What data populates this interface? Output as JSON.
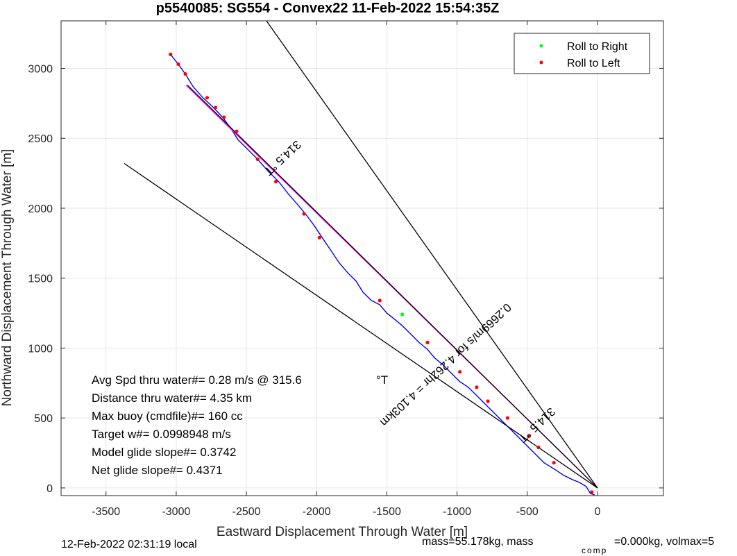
{
  "chart_data": {
    "type": "line",
    "title": "p5540085: SG554 - Convex22 11-Feb-2022 15:54:35Z",
    "xlabel": "Eastward Displacement Through Water [m]",
    "ylabel": "Northward Displacement Through Water [m]",
    "xlim": [
      -3820,
      470
    ],
    "ylim": [
      -55,
      3340
    ],
    "xticks": [
      -3500,
      -3000,
      -2500,
      -2000,
      -1500,
      -1000,
      -500,
      0
    ],
    "yticks": [
      0,
      500,
      1000,
      1500,
      2000,
      2500,
      3000
    ],
    "grid": true,
    "legend_position": "top-right",
    "legend": [
      "Roll to Right",
      "Roll to Left"
    ],
    "series": [
      {
        "name": "track",
        "color": "#0000ff",
        "style": "line",
        "x": [
          -3040,
          -2985,
          -2935,
          -2880,
          -2810,
          -2735,
          -2670,
          -2610,
          -2560,
          -2490,
          -2420,
          -2350,
          -2270,
          -2200,
          -2130,
          -2080,
          -2020,
          -1960,
          -1900,
          -1840,
          -1780,
          -1720,
          -1670,
          -1610,
          -1550,
          -1500,
          -1450,
          -1390,
          -1330,
          -1270,
          -1210,
          -1160,
          -1100,
          -1040,
          -980,
          -920,
          -860,
          -800,
          -740,
          -680,
          -620,
          -560,
          -500,
          -440,
          -380,
          -300,
          -240,
          -180,
          -130,
          -80,
          -50,
          -20
        ],
        "y": [
          3100,
          3030,
          2960,
          2870,
          2790,
          2720,
          2650,
          2570,
          2490,
          2420,
          2350,
          2270,
          2190,
          2100,
          2020,
          1960,
          1880,
          1790,
          1700,
          1610,
          1540,
          1480,
          1400,
          1340,
          1310,
          1250,
          1210,
          1160,
          1100,
          1040,
          990,
          930,
          880,
          820,
          760,
          720,
          660,
          600,
          540,
          480,
          420,
          360,
          300,
          240,
          180,
          130,
          90,
          60,
          40,
          10,
          -40,
          -50
        ]
      },
      {
        "name": "mean course",
        "color": "#ff00ff",
        "style": "line",
        "x": [
          -2930,
          0
        ],
        "y": [
          2880,
          0
        ]
      },
      {
        "name": "heading lines",
        "color": "#000000",
        "style": "line",
        "segments": [
          {
            "x": [
              0,
              -2400
            ],
            "y": [
              0,
              3400
            ]
          },
          {
            "x": [
              0,
              -3370
            ],
            "y": [
              0,
              2320
            ]
          },
          {
            "x": [
              0,
              -2920
            ],
            "y": [
              0,
              2880
            ]
          }
        ]
      },
      {
        "name": "Roll to Right",
        "color": "#00ff00",
        "style": "points",
        "x": [
          -1390
        ],
        "y": [
          1240
        ]
      },
      {
        "name": "Roll to Left",
        "color": "#ff0000",
        "style": "points",
        "x": [
          -3040,
          -2985,
          -2935,
          -2780,
          -2720,
          -2660,
          -2570,
          -2420,
          -2290,
          -2090,
          -1980,
          -1550,
          -1210,
          -980,
          -860,
          -780,
          -640,
          -490,
          -420,
          -310,
          -40
        ],
        "y": [
          3100,
          3030,
          2960,
          2790,
          2720,
          2650,
          2550,
          2350,
          2190,
          1960,
          1790,
          1340,
          1040,
          830,
          720,
          620,
          500,
          370,
          290,
          180,
          -30
        ]
      }
    ],
    "annotations": [
      {
        "text": "314.5 °T",
        "x": -2260,
        "y": 2380,
        "angle": 137
      },
      {
        "text": "0.2669m/s for 4.262hr = 4.103km",
        "x": -1100,
        "y": 900,
        "angle": 137
      },
      {
        "text": "314.5 °T",
        "x": -450,
        "y": 470,
        "angle": 137
      }
    ],
    "stats": [
      "Avg Spd thru water#=  0.28 m/s @ 315.6",
      "Distance thru water#=  4.35 km",
      "Max buoy (cmdfile)#= 160 cc",
      "Target w#= 0.0998948 m/s",
      "Model glide slope#= 0.3742",
      "Net glide slope#= 0.4371"
    ],
    "stats_unit": "°T"
  },
  "footer": {
    "left": "12-Feb-2022 02:31:19 local",
    "right_pre": "mass=55.178kg, mass",
    "right_sub": "comp",
    "right_post": "=0.000kg, volmax=5"
  }
}
